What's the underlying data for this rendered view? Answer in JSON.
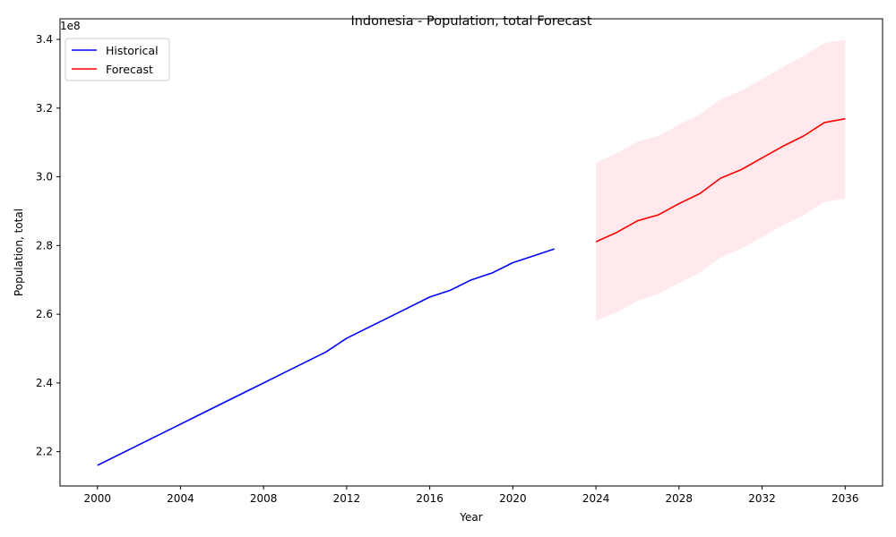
{
  "chart_data": {
    "type": "line",
    "title": "Indonesia - Population, total Forecast",
    "xlabel": "Year",
    "ylabel": "Population, total",
    "y_offset_label": "1e8",
    "y_scale_factor": 100000000,
    "xlim": [
      1998.2,
      2037.8
    ],
    "ylim": [
      210000000.0,
      346000000.0
    ],
    "x_ticks": [
      2000,
      2004,
      2008,
      2012,
      2016,
      2020,
      2024,
      2028,
      2032,
      2036
    ],
    "y_ticks": [
      220000000.0,
      240000000.0,
      260000000.0,
      280000000.0,
      300000000.0,
      320000000.0,
      340000000.0
    ],
    "y_tick_labels": [
      "2.2",
      "2.4",
      "2.6",
      "2.8",
      "3.0",
      "3.2",
      "3.4"
    ],
    "grid": false,
    "legend_placement": "top-left",
    "series": [
      {
        "name": "Historical",
        "color": "#0000ff",
        "x": [
          2000,
          2001,
          2002,
          2003,
          2004,
          2005,
          2006,
          2007,
          2008,
          2009,
          2010,
          2011,
          2012,
          2013,
          2014,
          2015,
          2016,
          2017,
          2018,
          2019,
          2020,
          2021,
          2022
        ],
        "values": [
          216000000.0,
          219000000.0,
          222000000.0,
          225000000.0,
          228000000.0,
          231000000.0,
          234000000.0,
          237000000.0,
          240000000.0,
          243000000.0,
          246000000.0,
          249000000.0,
          253000000.0,
          256000000.0,
          259000000.0,
          262000000.0,
          265000000.0,
          267000000.0,
          270000000.0,
          272000000.0,
          275000000.0,
          277000000.0,
          279000000.0
        ]
      },
      {
        "name": "Forecast",
        "color": "#ff0000",
        "x": [
          2024,
          2025,
          2026,
          2027,
          2028,
          2029,
          2030,
          2031,
          2032,
          2033,
          2034,
          2035,
          2036
        ],
        "values": [
          281100000.0,
          283800000.0,
          287200000.0,
          288900000.0,
          292200000.0,
          295100000.0,
          299600000.0,
          302100000.0,
          305500000.0,
          308900000.0,
          311900000.0,
          315800000.0,
          316900000.0
        ]
      }
    ],
    "confidence_band": {
      "color": "#ffc0cb",
      "opacity": 0.35,
      "x": [
        2024,
        2025,
        2026,
        2027,
        2028,
        2029,
        2030,
        2031,
        2032,
        2033,
        2034,
        2035,
        2036
      ],
      "lower": [
        258100000.0,
        260600000.0,
        263900000.0,
        265900000.0,
        269100000.0,
        272100000.0,
        276500000.0,
        279100000.0,
        282400000.0,
        285900000.0,
        288900000.0,
        292700000.0,
        293700000.0
      ],
      "upper": [
        304100000.0,
        306900000.0,
        310200000.0,
        311900000.0,
        315200000.0,
        318100000.0,
        322600000.0,
        325100000.0,
        328400000.0,
        331900000.0,
        335200000.0,
        338900000.0,
        339900000.0
      ]
    }
  }
}
